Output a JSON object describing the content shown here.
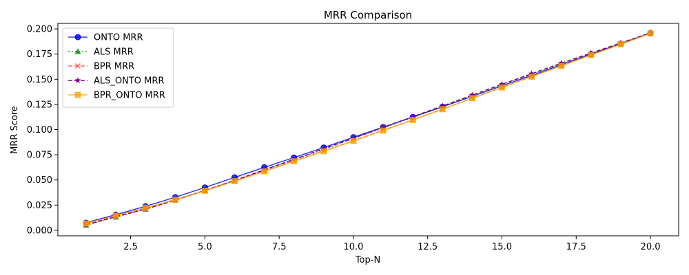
{
  "chart_data": {
    "type": "line",
    "title": "MRR Comparison",
    "xlabel": "Top-N",
    "ylabel": "MRR Score",
    "xlim": [
      0.05,
      20.95
    ],
    "ylim": [
      -0.0055,
      0.2055
    ],
    "xticks": [
      2.5,
      5.0,
      7.5,
      10.0,
      12.5,
      15.0,
      17.5,
      20.0
    ],
    "xtick_labels": [
      "2.5",
      "5.0",
      "7.5",
      "10.0",
      "12.5",
      "15.0",
      "17.5",
      "20.0"
    ],
    "yticks": [
      0.0,
      0.025,
      0.05,
      0.075,
      0.1,
      0.125,
      0.15,
      0.175,
      0.2
    ],
    "ytick_labels": [
      "0.000",
      "0.025",
      "0.050",
      "0.075",
      "0.100",
      "0.125",
      "0.150",
      "0.175",
      "0.200"
    ],
    "grid": false,
    "legend_position": "upper-left",
    "x": [
      1,
      2,
      3,
      4,
      5,
      6,
      7,
      8,
      9,
      10,
      11,
      12,
      13,
      14,
      15,
      16,
      17,
      18,
      19,
      20
    ],
    "series": [
      {
        "name": "ONTO MRR",
        "color": "#0000ff",
        "linestyle": "solid",
        "marker": "circle",
        "values": [
          0.0075,
          0.0155,
          0.0238,
          0.0328,
          0.0425,
          0.0525,
          0.0625,
          0.0722,
          0.0822,
          0.0924,
          0.1024,
          0.1125,
          0.1227,
          0.133,
          0.1435,
          0.1538,
          0.1645,
          0.175,
          0.1852,
          0.1958
        ]
      },
      {
        "name": "ALS MRR",
        "color": "#008000",
        "linestyle": "dotted",
        "marker": "triangle",
        "values": [
          0.005,
          0.013,
          0.021,
          0.0298,
          0.0395,
          0.0495,
          0.0598,
          0.07,
          0.0803,
          0.091,
          0.1015,
          0.112,
          0.1225,
          0.1332,
          0.144,
          0.1545,
          0.165,
          0.1752,
          0.1855,
          0.196
        ]
      },
      {
        "name": "BPR MRR",
        "color": "#ff0000",
        "linestyle": "dashed",
        "marker": "x",
        "values": [
          0.0068,
          0.0145,
          0.0222,
          0.0305,
          0.0395,
          0.049,
          0.0588,
          0.0688,
          0.0788,
          0.089,
          0.0993,
          0.1097,
          0.1203,
          0.1312,
          0.142,
          0.1527,
          0.1635,
          0.1742,
          0.185,
          0.1957
        ]
      },
      {
        "name": "ALS_ONTO MRR",
        "color": "#800080",
        "linestyle": "dashed",
        "marker": "star",
        "values": [
          0.0055,
          0.0135,
          0.021,
          0.0298,
          0.0395,
          0.0495,
          0.06,
          0.0705,
          0.081,
          0.0915,
          0.1022,
          0.1128,
          0.1235,
          0.1342,
          0.145,
          0.1555,
          0.166,
          0.176,
          0.186,
          0.1962
        ]
      },
      {
        "name": "BPR_ONTO MRR",
        "color": "#ffa500",
        "linestyle": "solid",
        "marker": "square",
        "values": [
          0.0068,
          0.0145,
          0.0222,
          0.0302,
          0.0392,
          0.0488,
          0.0585,
          0.0685,
          0.0785,
          0.0887,
          0.099,
          0.1095,
          0.1202,
          0.1312,
          0.1418,
          0.1525,
          0.1632,
          0.174,
          0.1848,
          0.1955
        ]
      }
    ]
  }
}
